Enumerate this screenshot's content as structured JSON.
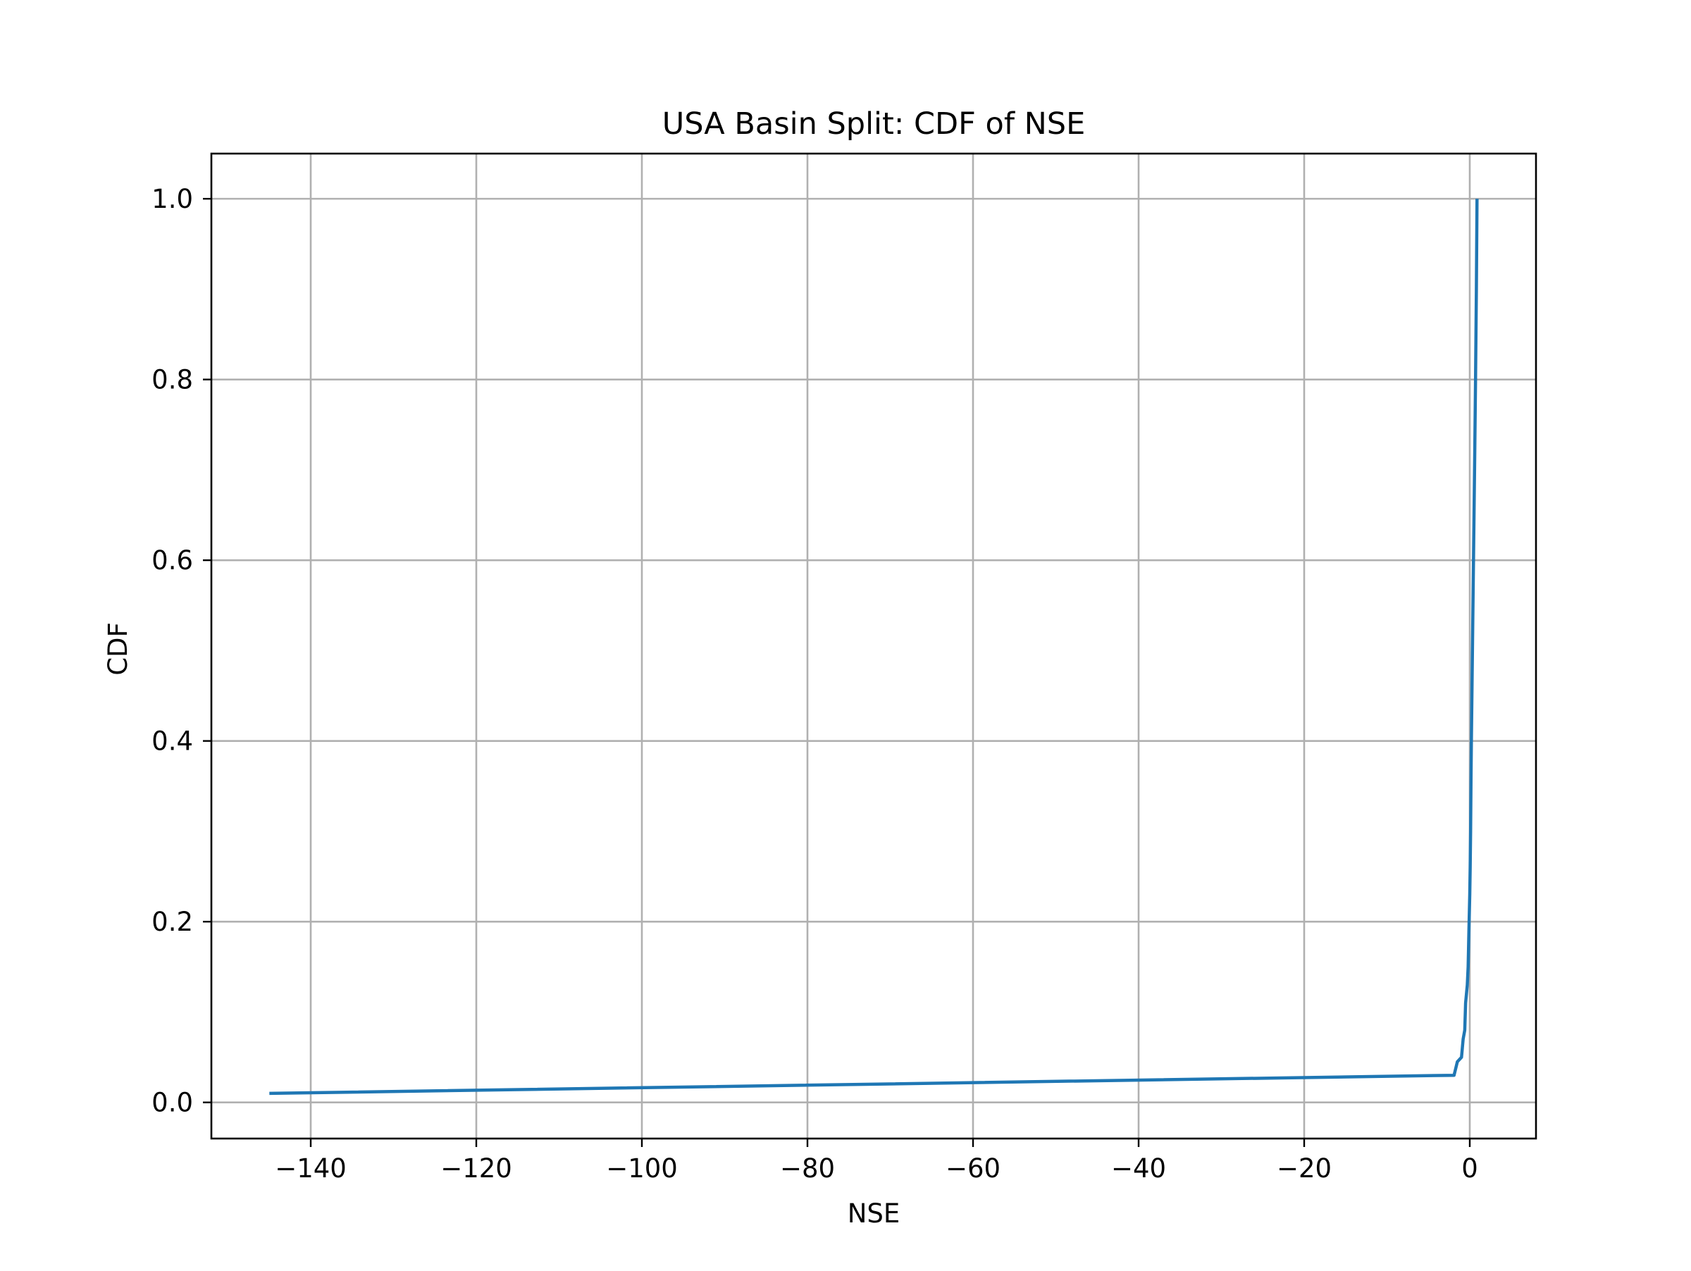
{
  "chart_data": {
    "type": "line",
    "title": "USA Basin Split: CDF of NSE",
    "xlabel": "NSE",
    "ylabel": "CDF",
    "xlim": [
      -152,
      8
    ],
    "ylim": [
      -0.04,
      1.05
    ],
    "xticks": [
      -140,
      -120,
      -100,
      -80,
      -60,
      -40,
      -20,
      0
    ],
    "xtick_labels": [
      "−140",
      "−120",
      "−100",
      "−80",
      "−60",
      "−40",
      "−20",
      "0"
    ],
    "yticks": [
      0.0,
      0.2,
      0.4,
      0.6,
      0.8,
      1.0
    ],
    "ytick_labels": [
      "0.0",
      "0.2",
      "0.4",
      "0.6",
      "0.8",
      "1.0"
    ],
    "grid": true,
    "legend": "none",
    "colors": {
      "line": "#1f77b4",
      "grid": "#b0b0b0",
      "axes": "#000000"
    },
    "series": [
      {
        "x": [
          -145.0,
          -1.9,
          -1.5,
          -1.0,
          -0.8,
          -0.6,
          -0.5,
          -0.4,
          -0.3,
          -0.2,
          -0.1,
          0.0,
          0.05,
          0.1,
          0.15,
          0.2,
          0.3,
          0.4,
          0.5,
          0.6,
          0.7,
          0.8,
          0.88
        ],
        "y": [
          0.01,
          0.03,
          0.045,
          0.05,
          0.07,
          0.08,
          0.11,
          0.12,
          0.13,
          0.15,
          0.19,
          0.23,
          0.26,
          0.3,
          0.36,
          0.4,
          0.48,
          0.56,
          0.64,
          0.72,
          0.8,
          0.9,
          1.0
        ]
      }
    ]
  }
}
